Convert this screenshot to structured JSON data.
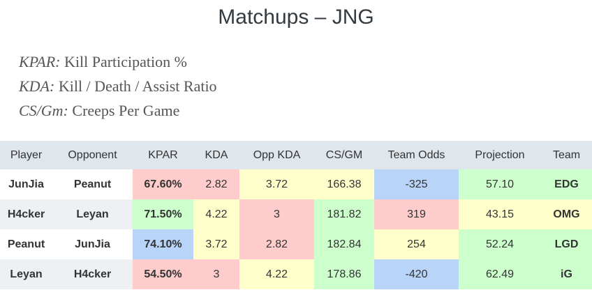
{
  "title": "Matchups – JNG",
  "legend": [
    {
      "term": "KPAR:",
      "desc": " Kill Participation %"
    },
    {
      "term": "KDA:",
      "desc": " Kill / Death / Assist Ratio"
    },
    {
      "term": "CS/Gm:",
      "desc": " Creeps Per Game"
    }
  ],
  "colors": {
    "red": "#ffcccc",
    "yellow": "#ffffcc",
    "green": "#ccffcc",
    "blue": "#b8d4f8",
    "header_bg": "#dfe6ec",
    "stripe_bg": "#eef1f4"
  },
  "table": {
    "headers": [
      "Player",
      "Opponent",
      "KPAR",
      "KDA",
      "Opp KDA",
      "CS/GM",
      "Team Odds",
      "Projection",
      "Team"
    ],
    "rows": [
      {
        "cells": [
          "JunJia",
          "Peanut",
          "67.60%",
          "2.82",
          "3.72",
          "166.38",
          "-325",
          "57.10",
          "EDG"
        ],
        "cell_colors": [
          null,
          null,
          "red",
          "red",
          "yellow",
          "yellow",
          "blue",
          "green",
          "green"
        ]
      },
      {
        "cells": [
          "H4cker",
          "Leyan",
          "71.50%",
          "4.22",
          "3",
          "181.82",
          "319",
          "43.15",
          "OMG"
        ],
        "cell_colors": [
          null,
          null,
          "green",
          "yellow",
          "red",
          "green",
          "red",
          "yellow",
          "yellow"
        ]
      },
      {
        "cells": [
          "Peanut",
          "JunJia",
          "74.10%",
          "3.72",
          "2.82",
          "182.84",
          "254",
          "52.24",
          "LGD"
        ],
        "cell_colors": [
          null,
          null,
          "blue",
          "yellow",
          "red",
          "green",
          "yellow",
          "green",
          "green"
        ]
      },
      {
        "cells": [
          "Leyan",
          "H4cker",
          "54.50%",
          "3",
          "4.22",
          "178.86",
          "-420",
          "62.49",
          "iG"
        ],
        "cell_colors": [
          null,
          null,
          "red",
          "red",
          "yellow",
          "green",
          "blue",
          "green",
          "green"
        ]
      }
    ]
  }
}
